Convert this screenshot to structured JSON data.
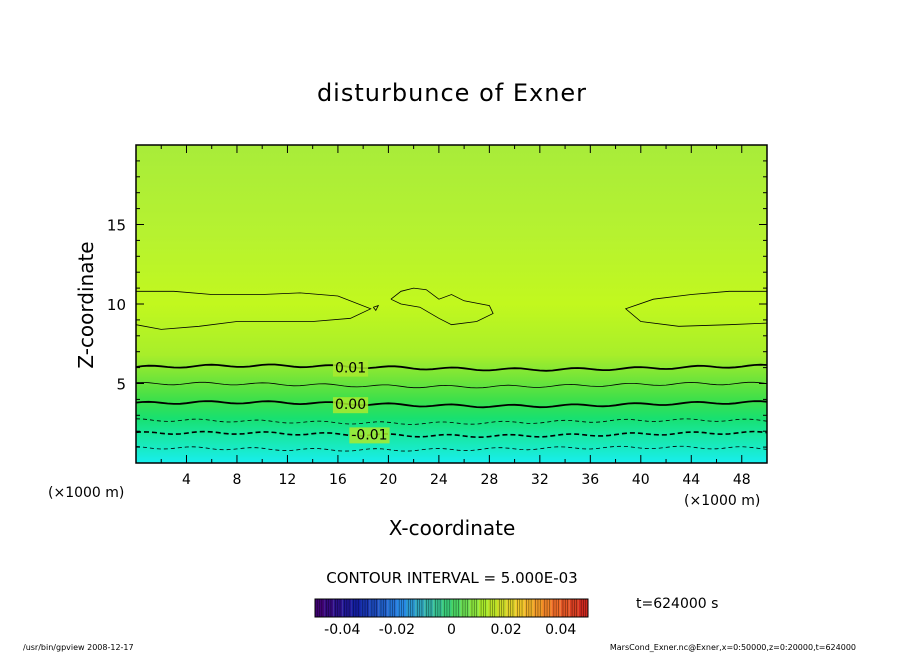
{
  "chart_data": {
    "type": "contour",
    "title": "disturbunce of Exner",
    "xlabel": "X-coordinate",
    "ylabel": "Z-coordinate",
    "x_unit": "(×1000 m)",
    "y_unit": "(×1000 m)",
    "xlim": [
      0,
      50
    ],
    "ylim": [
      0,
      20
    ],
    "x_ticks": [
      4,
      8,
      12,
      16,
      20,
      24,
      28,
      32,
      36,
      40,
      44,
      48
    ],
    "y_ticks": [
      5,
      10,
      15
    ],
    "contour_labels": [
      {
        "text": "0.01",
        "x": 17.0,
        "z": 6.0
      },
      {
        "text": "0.00",
        "x": 17.0,
        "z": 3.7
      },
      {
        "text": "-0.01",
        "x": 18.5,
        "z": 1.8
      }
    ],
    "contour_interval_text": "CONTOUR INTERVAL = 5.000E-03",
    "time_text": "t=624000 s",
    "colorbar": {
      "ticks": [
        "-0.04",
        "-0.02",
        "0",
        "0.02",
        "0.04"
      ],
      "range": [
        -0.05,
        0.05
      ]
    },
    "footer_left": "/usr/bin/gpview   2008-12-17",
    "footer_right": "MarsCond_Exner.nc@Exner,x=0:50000,z=0:20000,t=624000"
  }
}
